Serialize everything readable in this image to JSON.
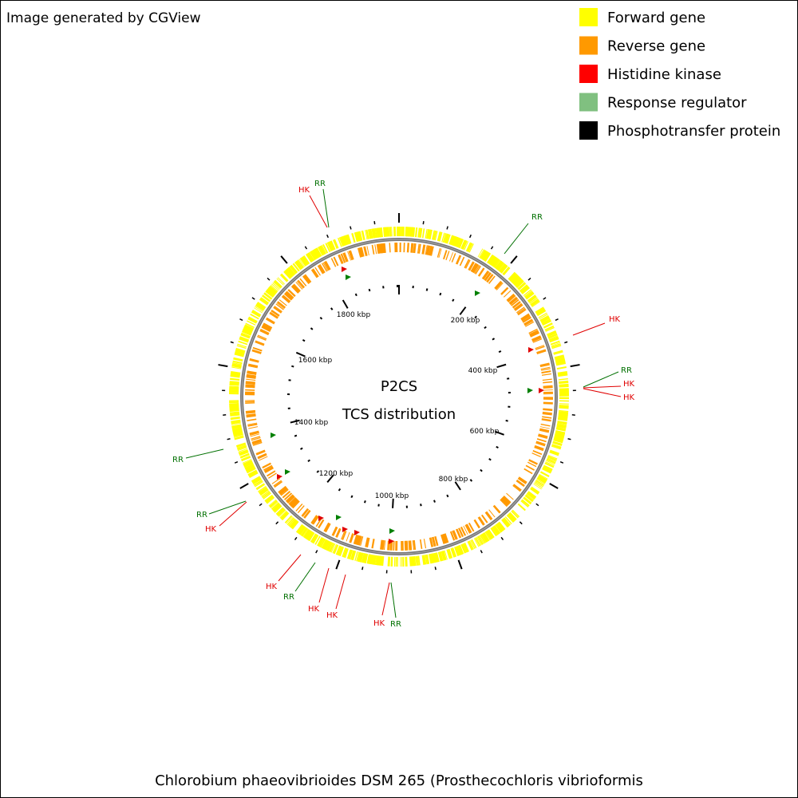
{
  "header": {
    "title": "Image generated by CGView"
  },
  "legend": [
    {
      "label": "Forward gene",
      "color": "#ffff00"
    },
    {
      "label": "Reverse gene",
      "color": "#ff9900"
    },
    {
      "label": "Histidine kinase",
      "color": "#ff0000"
    },
    {
      "label": "Response regulator",
      "color": "#80c080"
    },
    {
      "label": "Phosphotransfer protein",
      "color": "#000000"
    }
  ],
  "center": {
    "title": "P2CS",
    "subtitle": "TCS distribution"
  },
  "scale_labels": [
    "200 kbp",
    "400 kbp",
    "600 kbp",
    "800 kbp",
    "1000 kbp",
    "1200 kbp",
    "1400 kbp",
    "1600 kbp",
    "1800 kbp"
  ],
  "callouts": [
    {
      "label": "HK",
      "color": "#e00000"
    },
    {
      "label": "RR",
      "color": "#007000"
    },
    {
      "label": "RR",
      "color": "#007000"
    },
    {
      "label": "HK",
      "color": "#e00000"
    },
    {
      "label": "RR",
      "color": "#007000"
    },
    {
      "label": "HK",
      "color": "#e00000"
    },
    {
      "label": "HK",
      "color": "#e00000"
    },
    {
      "label": "RR",
      "color": "#007000"
    },
    {
      "label": "RR",
      "color": "#007000"
    },
    {
      "label": "HK",
      "color": "#e00000"
    },
    {
      "label": "HK",
      "color": "#e00000"
    },
    {
      "label": "RR",
      "color": "#007000"
    },
    {
      "label": "HK",
      "color": "#e00000"
    },
    {
      "label": "HK",
      "color": "#e00000"
    },
    {
      "label": "HK",
      "color": "#e00000"
    },
    {
      "label": "RR",
      "color": "#007000"
    }
  ],
  "footer": {
    "caption": "Chlorobium phaeovibrioides DSM 265 (Prosthecochloris vibrioformis"
  }
}
